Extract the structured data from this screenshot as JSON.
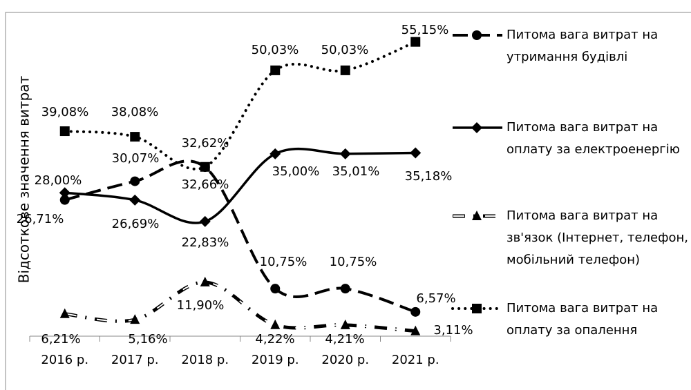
{
  "chart_data": {
    "type": "line",
    "y_axis_label": "Відсоткове значення витрат",
    "categories": [
      "2016 р.",
      "2017 р.",
      "2018 р.",
      "2019 р.",
      "2020 р.",
      "2021 р."
    ],
    "ylim": [
      2.2,
      60.2
    ],
    "series": [
      {
        "name": "Питома вага витрат на утримання будівлі",
        "color": "#000000",
        "marker": "circle",
        "line": "dashed",
        "values": [
          26.71,
          30.07,
          32.62,
          10.75,
          10.75,
          6.57
        ],
        "value_labels": [
          "26,71%",
          "30,07%",
          "32,62%",
          "10,75%",
          "10,75%",
          "6,57%"
        ]
      },
      {
        "name": "Питома вага витрат на оплату за електроенергію",
        "color": "#000000",
        "marker": "diamond",
        "line": "solid",
        "values": [
          28.0,
          26.69,
          22.83,
          35.0,
          35.01,
          35.18
        ],
        "value_labels": [
          "28,00%",
          "26,69%",
          "22,83%",
          "35,00%",
          "35,01%",
          "35,18%"
        ]
      },
      {
        "name": "Питома вага витрат на зв'язок (Інтернет, телефон, мобільний телефон)",
        "color": "#000000",
        "marker": "triangle",
        "line": "double",
        "values": [
          6.21,
          5.16,
          11.9,
          4.22,
          4.21,
          3.11
        ],
        "value_labels": [
          "6,21%",
          "5,16%",
          "11,90%",
          "4,22%",
          "4,21%",
          "3,11%"
        ]
      },
      {
        "name": "Питома вага витрат на оплату за опалення",
        "color": "#000000",
        "marker": "square",
        "line": "dotted",
        "values": [
          39.08,
          38.08,
          32.66,
          50.03,
          50.03,
          55.15
        ],
        "value_labels": [
          "39,08%",
          "38,08%",
          "32,66%",
          "50,03%",
          "50,03%",
          "55,15%"
        ]
      }
    ]
  }
}
